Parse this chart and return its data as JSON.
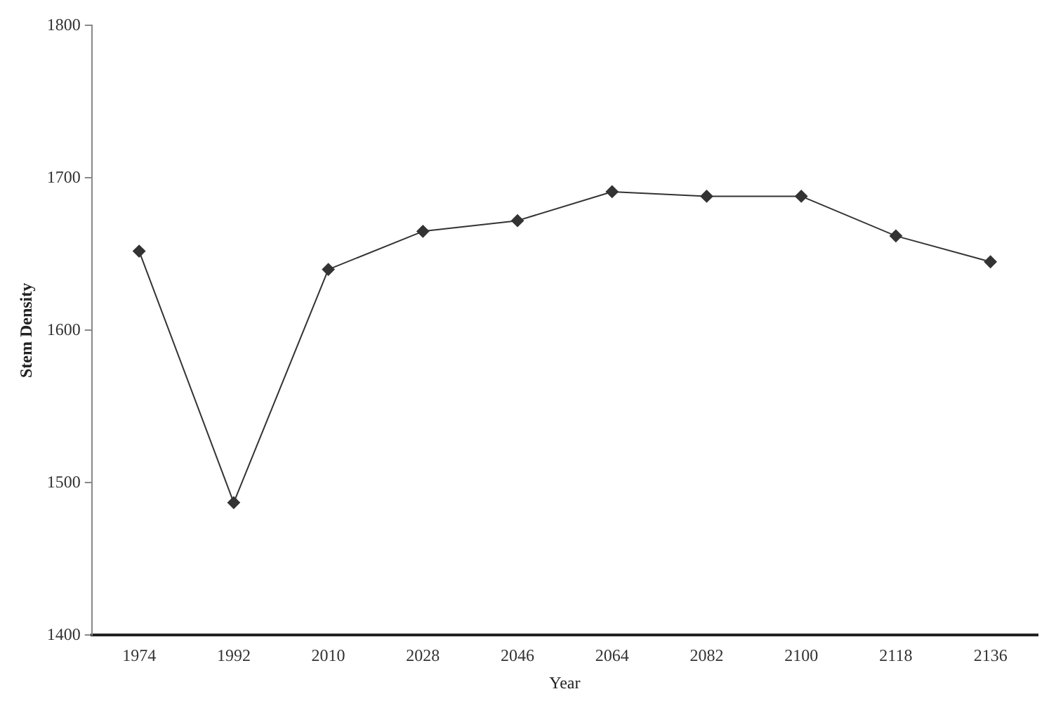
{
  "chart_data": {
    "type": "line",
    "xlabel": "Year",
    "ylabel": "Stem Density",
    "categories": [
      "1974",
      "1992",
      "2010",
      "2028",
      "2046",
      "2064",
      "2082",
      "2100",
      "2118",
      "2136"
    ],
    "series": [
      {
        "color": "#333333",
        "values": [
          1652,
          1487,
          1640,
          1665,
          1672,
          1691,
          1688,
          1688,
          1662,
          1645
        ]
      }
    ],
    "ylim": [
      1400,
      1800
    ],
    "yticks": [
      1400,
      1500,
      1600,
      1700,
      1800
    ],
    "grid": false,
    "legend": false,
    "marker": "diamond",
    "line_style": "solid"
  }
}
